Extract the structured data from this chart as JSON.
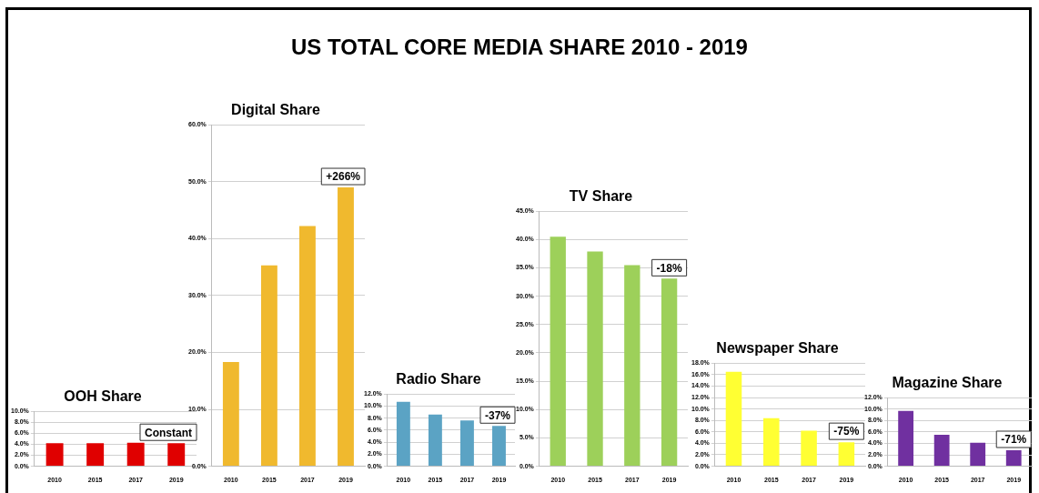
{
  "chart_data": [
    {
      "type": "other",
      "title": "US TOTAL CORE MEDIA SHARE 2010 - 2019"
    },
    {
      "type": "bar",
      "title": "OOH Share",
      "categories": [
        "2010",
        "2015",
        "2017",
        "2019"
      ],
      "values": [
        4.2,
        4.2,
        4.3,
        4.2
      ],
      "color": "#e00000",
      "ylim": [
        0,
        10
      ],
      "yticks": [
        {
          "value": 0,
          "label": "0.0%"
        },
        {
          "value": 2,
          "label": "2.0%"
        },
        {
          "value": 4,
          "label": "4.0%"
        },
        {
          "value": 6,
          "label": "6.0%"
        },
        {
          "value": 8,
          "label": "8.0%"
        },
        {
          "value": 10,
          "label": "10.0%"
        }
      ],
      "grid": "y",
      "annotations": [
        "Constant"
      ]
    },
    {
      "type": "bar",
      "title": "Digital Share",
      "categories": [
        "2010",
        "2015",
        "2017",
        "2019"
      ],
      "values": [
        18.3,
        35.3,
        42.2,
        49.0
      ],
      "color": "#f0b92e",
      "ylim": [
        0,
        60
      ],
      "yticks": [
        {
          "value": 0,
          "label": "0.0%"
        },
        {
          "value": 10,
          "label": "10.0%"
        },
        {
          "value": 20,
          "label": "20.0%"
        },
        {
          "value": 30,
          "label": "30.0%"
        },
        {
          "value": 40,
          "label": "40.0%"
        },
        {
          "value": 50,
          "label": "50.0%"
        },
        {
          "value": 60,
          "label": "60.0%"
        }
      ],
      "grid": "y",
      "annotations": [
        "+266%"
      ]
    },
    {
      "type": "bar",
      "title": "Radio Share",
      "categories": [
        "2010",
        "2015",
        "2017",
        "2019"
      ],
      "values": [
        10.7,
        8.6,
        7.6,
        6.7
      ],
      "color": "#5ba3c4",
      "ylim": [
        0,
        12
      ],
      "yticks": [
        {
          "value": 0,
          "label": "0.0%"
        },
        {
          "value": 2,
          "label": "2.0%"
        },
        {
          "value": 4,
          "label": "4.0%"
        },
        {
          "value": 6,
          "label": "6.0%"
        },
        {
          "value": 8,
          "label": "8.0%"
        },
        {
          "value": 10,
          "label": "10.0%"
        },
        {
          "value": 12,
          "label": "12.0%"
        }
      ],
      "grid": "y",
      "annotations": [
        "-37%"
      ]
    },
    {
      "type": "bar",
      "title": "TV Share",
      "categories": [
        "2010",
        "2015",
        "2017",
        "2019"
      ],
      "values": [
        40.5,
        37.9,
        35.5,
        33.1
      ],
      "color": "#9dd05a",
      "ylim": [
        0,
        45
      ],
      "yticks": [
        {
          "value": 0,
          "label": "0.0%"
        },
        {
          "value": 5,
          "label": "5.0%"
        },
        {
          "value": 10,
          "label": "10.0%"
        },
        {
          "value": 15,
          "label": "15.0%"
        },
        {
          "value": 20,
          "label": "20.0%"
        },
        {
          "value": 25,
          "label": "25.0%"
        },
        {
          "value": 30,
          "label": "30.0%"
        },
        {
          "value": 35,
          "label": "35.0%"
        },
        {
          "value": 40,
          "label": "40.0%"
        },
        {
          "value": 45,
          "label": "45.0%"
        }
      ],
      "grid": "y",
      "annotations": [
        "-18%"
      ]
    },
    {
      "type": "bar",
      "title": "Newspaper Share",
      "categories": [
        "2010",
        "2015",
        "2017",
        "2019"
      ],
      "values": [
        16.5,
        8.4,
        6.2,
        4.2
      ],
      "color": "#ffff33",
      "ylim": [
        0,
        18
      ],
      "yticks": [
        {
          "value": 0,
          "label": "0.0%"
        },
        {
          "value": 2,
          "label": "2.0%"
        },
        {
          "value": 4,
          "label": "4.0%"
        },
        {
          "value": 6,
          "label": "6.0%"
        },
        {
          "value": 8,
          "label": "8.0%"
        },
        {
          "value": 10,
          "label": "10.0%"
        },
        {
          "value": 12,
          "label": "12.0%"
        },
        {
          "value": 14,
          "label": "14.0%"
        },
        {
          "value": 16,
          "label": "16.0%"
        },
        {
          "value": 18,
          "label": "18.0%"
        }
      ],
      "grid": "y",
      "annotations": [
        "-75%"
      ]
    },
    {
      "type": "bar",
      "title": "Magazine Share",
      "categories": [
        "2010",
        "2015",
        "2017",
        "2019"
      ],
      "values": [
        9.7,
        5.5,
        4.1,
        2.8
      ],
      "color": "#7030a0",
      "ylim": [
        0,
        12
      ],
      "yticks": [
        {
          "value": 0,
          "label": "0.0%"
        },
        {
          "value": 2,
          "label": "2.0%"
        },
        {
          "value": 4,
          "label": "4.0%"
        },
        {
          "value": 6,
          "label": "6.0%"
        },
        {
          "value": 8,
          "label": "8.0%"
        },
        {
          "value": 10,
          "label": "10.0%"
        },
        {
          "value": 12,
          "label": "12.0%"
        }
      ],
      "grid": "y",
      "annotations": [
        "-71%"
      ]
    }
  ]
}
